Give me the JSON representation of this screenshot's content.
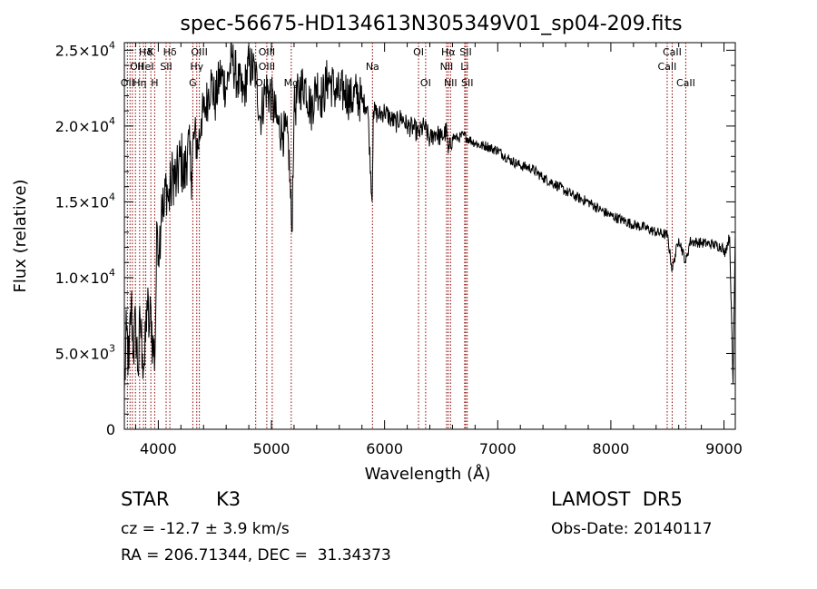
{
  "chart_data": {
    "type": "line",
    "title": "spec-56675-HD134613N305349V01_sp04-209.fits",
    "xlabel": "Wavelength (Å)",
    "ylabel": "Flux (relative)",
    "xlim": [
      3700,
      9100
    ],
    "ylim": [
      0,
      25500
    ],
    "x_ticks": [
      4000,
      5000,
      6000,
      7000,
      8000,
      9000
    ],
    "x_tick_labels": [
      "4000",
      "5000",
      "6000",
      "7000",
      "8000",
      "9000"
    ],
    "y_ticks": [
      0,
      5000,
      10000,
      15000,
      20000,
      25000
    ],
    "y_tick_labels": [
      {
        "mant": "0",
        "exp": ""
      },
      {
        "mant": "5.0×10",
        "exp": "3"
      },
      {
        "mant": "1.0×10",
        "exp": "4"
      },
      {
        "mant": "1.5×10",
        "exp": "4"
      },
      {
        "mant": "2.0×10",
        "exp": "4"
      },
      {
        "mant": "2.5×10",
        "exp": "4"
      }
    ],
    "grid": false,
    "line_color": "#000000",
    "marker_color": "#8b0000",
    "series": [
      {
        "x": [
          3700,
          3720,
          3740,
          3760,
          3780,
          3800,
          3820,
          3840,
          3860,
          3880,
          3900,
          3920,
          3935,
          3950,
          3970,
          3990,
          4010,
          4030,
          4050,
          4070,
          4090,
          4110,
          4130,
          4160,
          4200,
          4230,
          4260,
          4290,
          4320,
          4350,
          4380,
          4410,
          4440,
          4470,
          4500,
          4550,
          4600,
          4650,
          4700,
          4750,
          4800,
          4860,
          4900,
          4950,
          5000,
          5050,
          5100,
          5150,
          5180,
          5200,
          5250,
          5300,
          5350,
          5400,
          5450,
          5500,
          5550,
          5600,
          5650,
          5700,
          5750,
          5800,
          5850,
          5890,
          5900,
          5950,
          6000,
          6050,
          6100,
          6150,
          6200,
          6250,
          6300,
          6350,
          6400,
          6450,
          6500,
          6550,
          6563,
          6600,
          6650,
          6700,
          6750,
          6800,
          6850,
          6900,
          6950,
          7000,
          7100,
          7200,
          7300,
          7400,
          7500,
          7600,
          7700,
          7800,
          7900,
          8000,
          8100,
          8200,
          8300,
          8400,
          8500,
          8542,
          8600,
          8662,
          8700,
          8800,
          8900,
          8990,
          9000,
          9050,
          9080,
          9100
        ],
        "y": [
          2500,
          6500,
          4000,
          8500,
          5200,
          7000,
          3800,
          7200,
          5000,
          4200,
          8500,
          6500,
          8000,
          5500,
          4800,
          13500,
          12000,
          15500,
          14000,
          16500,
          15000,
          15800,
          17000,
          16200,
          18000,
          16500,
          18800,
          17000,
          19500,
          18500,
          20500,
          21000,
          22000,
          23000,
          21500,
          23500,
          22500,
          24500,
          23000,
          22000,
          24000,
          23500,
          20500,
          22500,
          21800,
          20200,
          19600,
          19000,
          13000,
          21000,
          22500,
          22800,
          21000,
          22800,
          21800,
          23200,
          22500,
          22000,
          22400,
          21700,
          22100,
          21600,
          21300,
          15000,
          21000,
          20700,
          21000,
          20500,
          20200,
          20600,
          20000,
          19900,
          19500,
          20000,
          19100,
          19600,
          19200,
          19700,
          18200,
          19300,
          19200,
          19400,
          19100,
          18900,
          18700,
          18700,
          18500,
          18400,
          17800,
          17400,
          17200,
          16600,
          16200,
          15700,
          15300,
          15000,
          14500,
          14100,
          13800,
          13500,
          13300,
          13000,
          12800,
          10500,
          12600,
          11000,
          12400,
          12300,
          12200,
          12000,
          11500,
          12700,
          3000,
          12900
        ]
      }
    ],
    "annotations": {
      "label_y": [
        {
          "text": "Hδ",
          "x": 3889,
          "row": 1
        },
        {
          "text": "K",
          "x": 3934,
          "row": 1
        },
        {
          "text": "Hδ",
          "x": 4102,
          "row": 1
        },
        {
          "text": "OIII",
          "x": 4363,
          "row": 1
        },
        {
          "text": "OIII",
          "x": 4959,
          "row": 1
        },
        {
          "text": "OI",
          "x": 6300,
          "row": 1
        },
        {
          "text": "Hα",
          "x": 6563,
          "row": 1
        },
        {
          "text": "SII",
          "x": 6717,
          "row": 1
        },
        {
          "text": "CaII",
          "x": 8542,
          "row": 1
        },
        {
          "text": "OII",
          "x": 3810,
          "row": 2
        },
        {
          "text": "HeI",
          "x": 3888,
          "row": 2
        },
        {
          "text": "SII",
          "x": 4069,
          "row": 2
        },
        {
          "text": "Hγ",
          "x": 4340,
          "row": 2
        },
        {
          "text": "OIII",
          "x": 4959,
          "row": 2
        },
        {
          "text": "Na",
          "x": 5893,
          "row": 2
        },
        {
          "text": "NII",
          "x": 6548,
          "row": 2
        },
        {
          "text": "Li",
          "x": 6708,
          "row": 2
        },
        {
          "text": "CaII",
          "x": 8498,
          "row": 2
        },
        {
          "text": "OII",
          "x": 3727,
          "row": 3
        },
        {
          "text": "Hη",
          "x": 3835,
          "row": 3
        },
        {
          "text": "H",
          "x": 3968,
          "row": 3
        },
        {
          "text": "G",
          "x": 4305,
          "row": 3
        },
        {
          "text": "OIII",
          "x": 4930,
          "row": 3
        },
        {
          "text": "Mg",
          "x": 5175,
          "row": 3
        },
        {
          "text": "OI",
          "x": 6363,
          "row": 3
        },
        {
          "text": "NII",
          "x": 6583,
          "row": 3
        },
        {
          "text": "SII",
          "x": 6731,
          "row": 3
        },
        {
          "text": "CaII",
          "x": 8662,
          "row": 3
        }
      ]
    },
    "line_markers": [
      3727,
      3750,
      3771,
      3798,
      3835,
      3869,
      3889,
      3934,
      3968,
      4069,
      4102,
      4305,
      4340,
      4363,
      4861,
      4959,
      5007,
      5175,
      5893,
      6300,
      6363,
      6548,
      6563,
      6583,
      6708,
      6717,
      6731,
      8498,
      8542,
      8662
    ]
  },
  "info": {
    "object_class": "STAR",
    "subclass": "K3",
    "survey": "LAMOST  DR5",
    "cz": "cz = -12.7 ± 3.9 km/s",
    "obs_date": "Obs-Date: 20140117",
    "coords": "RA = 206.71344, DEC =  31.34373"
  }
}
